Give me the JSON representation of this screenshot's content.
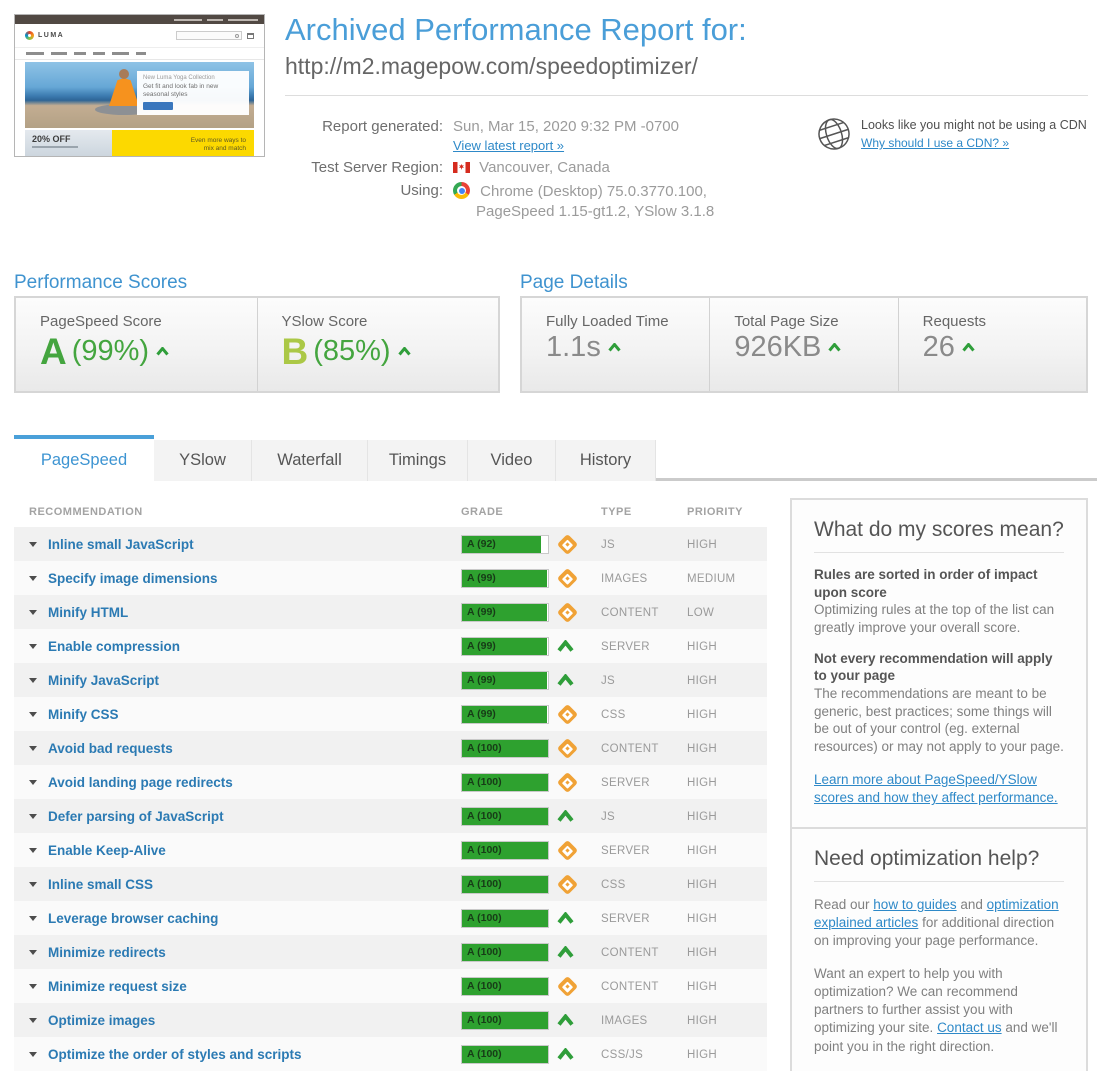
{
  "header": {
    "title": "Archived Performance Report for:",
    "url": "http://m2.magepow.com/speedoptimizer/",
    "report_generated_label": "Report generated:",
    "report_generated_value": "Sun, Mar 15, 2020 9:32 PM -0700",
    "view_latest_link": "View latest report »",
    "region_label": "Test Server Region:",
    "region_value": "Vancouver, Canada",
    "using_label": "Using:",
    "using_value_line1": "Chrome (Desktop) 75.0.3770.100,",
    "using_value_line2": "PageSpeed 1.15-gt1.2, YSlow 3.1.8",
    "cdn_text": "Looks like you might not be using a CDN",
    "cdn_link": "Why should I use a CDN? »"
  },
  "thumbnail": {
    "logo": "LUMA",
    "hero_eyebrow": "New Luma Yoga Collection",
    "hero_text": "Get fit and look fab in new seasonal styles",
    "promo_left": "20% OFF",
    "promo_right": "Even more ways to mix and match"
  },
  "performance_scores": {
    "section_title": "Performance Scores",
    "cards": [
      {
        "label": "PageSpeed Score",
        "grade": "A",
        "percent": "(99%)",
        "grade_color": "#44a53f"
      },
      {
        "label": "YSlow Score",
        "grade": "B",
        "percent": "(85%)",
        "grade_color": "#abc846"
      }
    ]
  },
  "page_details": {
    "section_title": "Page Details",
    "cards": [
      {
        "label": "Fully Loaded Time",
        "value": "1.1s"
      },
      {
        "label": "Total Page Size",
        "value": "926KB"
      },
      {
        "label": "Requests",
        "value": "26"
      }
    ]
  },
  "tabs": [
    {
      "label": "PageSpeed",
      "active": true
    },
    {
      "label": "YSlow",
      "active": false
    },
    {
      "label": "Waterfall",
      "active": false
    },
    {
      "label": "Timings",
      "active": false
    },
    {
      "label": "Video",
      "active": false
    },
    {
      "label": "History",
      "active": false
    }
  ],
  "table": {
    "headers": {
      "recommendation": "RECOMMENDATION",
      "grade": "GRADE",
      "type": "TYPE",
      "priority": "PRIORITY"
    },
    "rows": [
      {
        "name": "Inline small JavaScript",
        "grade": "A (92)",
        "percent": 92,
        "icon": "diamond-icon",
        "type": "JS",
        "priority": "HIGH"
      },
      {
        "name": "Specify image dimensions",
        "grade": "A (99)",
        "percent": 99,
        "icon": "diamond-icon",
        "type": "IMAGES",
        "priority": "MEDIUM"
      },
      {
        "name": "Minify HTML",
        "grade": "A (99)",
        "percent": 99,
        "icon": "diamond-icon",
        "type": "CONTENT",
        "priority": "LOW"
      },
      {
        "name": "Enable compression",
        "grade": "A (99)",
        "percent": 99,
        "icon": "chevron-up-icon",
        "type": "SERVER",
        "priority": "HIGH"
      },
      {
        "name": "Minify JavaScript",
        "grade": "A (99)",
        "percent": 99,
        "icon": "chevron-up-icon",
        "type": "JS",
        "priority": "HIGH"
      },
      {
        "name": "Minify CSS",
        "grade": "A (99)",
        "percent": 99,
        "icon": "diamond-icon",
        "type": "CSS",
        "priority": "HIGH"
      },
      {
        "name": "Avoid bad requests",
        "grade": "A (100)",
        "percent": 100,
        "icon": "diamond-icon",
        "type": "CONTENT",
        "priority": "HIGH"
      },
      {
        "name": "Avoid landing page redirects",
        "grade": "A (100)",
        "percent": 100,
        "icon": "diamond-icon",
        "type": "SERVER",
        "priority": "HIGH"
      },
      {
        "name": "Defer parsing of JavaScript",
        "grade": "A (100)",
        "percent": 100,
        "icon": "chevron-up-icon",
        "type": "JS",
        "priority": "HIGH"
      },
      {
        "name": "Enable Keep-Alive",
        "grade": "A (100)",
        "percent": 100,
        "icon": "diamond-icon",
        "type": "SERVER",
        "priority": "HIGH"
      },
      {
        "name": "Inline small CSS",
        "grade": "A (100)",
        "percent": 100,
        "icon": "diamond-icon",
        "type": "CSS",
        "priority": "HIGH"
      },
      {
        "name": "Leverage browser caching",
        "grade": "A (100)",
        "percent": 100,
        "icon": "chevron-up-icon",
        "type": "SERVER",
        "priority": "HIGH"
      },
      {
        "name": "Minimize redirects",
        "grade": "A (100)",
        "percent": 100,
        "icon": "chevron-up-icon",
        "type": "CONTENT",
        "priority": "HIGH"
      },
      {
        "name": "Minimize request size",
        "grade": "A (100)",
        "percent": 100,
        "icon": "diamond-icon",
        "type": "CONTENT",
        "priority": "HIGH"
      },
      {
        "name": "Optimize images",
        "grade": "A (100)",
        "percent": 100,
        "icon": "chevron-up-icon",
        "type": "IMAGES",
        "priority": "HIGH"
      },
      {
        "name": "Optimize the order of styles and scripts",
        "grade": "A (100)",
        "percent": 100,
        "icon": "chevron-up-icon",
        "type": "CSS/JS",
        "priority": "HIGH"
      }
    ]
  },
  "sidebar": {
    "scores_box": {
      "title": "What do my scores mean?",
      "sections": [
        {
          "heading": "Rules are sorted in order of impact upon score",
          "body": "Optimizing rules at the top of the list can greatly improve your overall score."
        },
        {
          "heading": "Not every recommendation will apply to your page",
          "body": "The recommendations are meant to be generic, best practices; some things will be out of your control (eg. external resources) or may not apply to your page."
        }
      ],
      "link": "Learn more about PageSpeed/YSlow scores and how they affect performance."
    },
    "help_box": {
      "title": "Need optimization help?",
      "p1": {
        "t1": "Read our ",
        "l1": "how to guides",
        "t2": " and ",
        "l2": "optimization explained articles",
        "t3": " for additional direction on improving your page performance."
      },
      "p2": {
        "t1": "Want an expert to help you with optimization? We can recommend partners to further assist you with optimizing your site. ",
        "l1": "Contact us",
        "t2": " and we'll point you in the right direction."
      }
    }
  },
  "colors": {
    "accent_blue": "#4a9ed8",
    "link_blue": "#2e89c8",
    "grade_bar_green": "#2ea12f",
    "warning_orange": "#f0a236",
    "pagespeed_grade": "#44a53f",
    "yslow_grade": "#abc846"
  }
}
